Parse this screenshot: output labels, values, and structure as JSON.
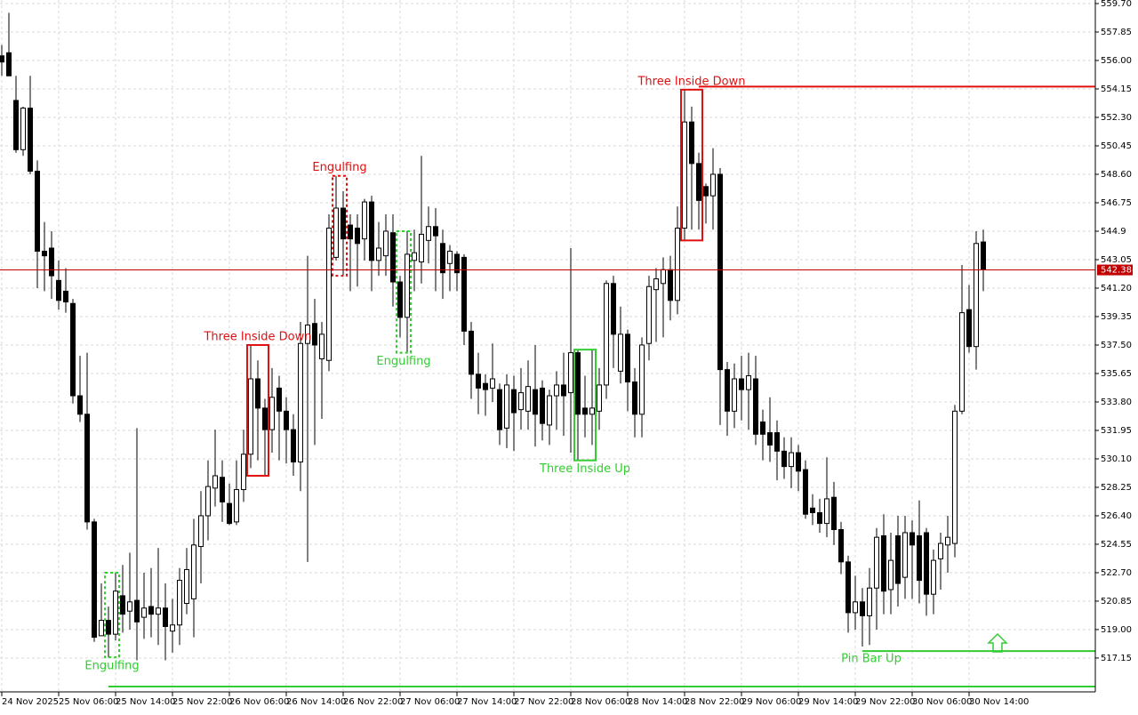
{
  "chart_data": {
    "type": "candlestick",
    "categories": [
      "24 Nov 2025",
      null,
      null,
      null,
      null,
      null,
      null,
      null,
      "25 Nov 06:00",
      null,
      null,
      null,
      null,
      null,
      null,
      null,
      "25 Nov 14:00",
      null,
      null,
      null,
      null,
      null,
      null,
      null,
      "25 Nov 22:00",
      null,
      null,
      null,
      null,
      null,
      null,
      null,
      "26 Nov 06:00",
      null,
      null,
      null,
      null,
      null,
      null,
      null,
      "26 Nov 14:00",
      null,
      null,
      null,
      null,
      null,
      null,
      null,
      "26 Nov 22:00",
      null,
      null,
      null,
      null,
      null,
      null,
      null,
      "27 Nov 06:00",
      null,
      null,
      null,
      null,
      null,
      null,
      null,
      "27 Nov 14:00",
      null,
      null,
      null,
      null,
      null,
      null,
      null,
      "27 Nov 22:00",
      null,
      null,
      null,
      null,
      null,
      null,
      null,
      "28 Nov 06:00",
      null,
      null,
      null,
      null,
      null,
      null,
      null,
      "28 Nov 14:00",
      null,
      null,
      null,
      null,
      null,
      null,
      null,
      "28 Nov 22:00",
      null,
      null,
      null,
      null,
      null,
      null,
      null,
      "29 Nov 06:00",
      null,
      null,
      null,
      null,
      null,
      null,
      null,
      "29 Nov 14:00",
      null,
      null,
      null,
      null,
      null,
      null,
      null,
      "29 Nov 22:00",
      null,
      null,
      null,
      null,
      null,
      null,
      null,
      "30 Nov 06:00",
      null,
      null,
      null,
      null,
      null,
      null,
      null,
      "30 Nov 14:00",
      null,
      null
    ],
    "open": [
      556.3,
      556.5,
      553.4,
      550.2,
      552.9,
      548.8,
      543.6,
      543.8,
      541.7,
      541.0,
      540.2,
      534.2,
      533.0,
      526.0,
      518.6,
      519.6,
      518.7,
      521.2,
      520.2,
      520.9,
      519.8,
      520.5,
      520.0,
      520.4,
      518.9,
      519.3,
      520.7,
      521.0,
      524.4,
      526.4,
      528.2,
      528.9,
      527.2,
      526.0,
      528.1,
      530.4,
      535.3,
      533.4,
      532.0,
      534.7,
      533.2,
      532.0,
      529.9,
      537.6,
      538.9,
      536.6,
      536.5,
      543.2,
      546.4,
      545.3,
      545.1,
      544.4,
      546.8,
      543.0,
      543.3,
      544.8,
      541.6,
      539.3,
      543.0,
      542.9,
      544.3,
      545.2,
      544.1,
      542.8,
      543.4,
      543.2,
      538.4,
      535.6,
      535.0,
      534.7,
      534.6,
      532.1,
      534.6,
      533.3,
      533.2,
      534.6,
      534.7,
      532.3,
      534.2,
      534.9,
      534.4,
      537.0,
      533.4,
      533.0,
      533.2,
      534.9,
      541.5,
      535.8,
      538.2,
      535.1,
      533.0,
      537.6,
      541.1,
      541.5,
      542.4,
      540.4,
      545.1,
      552.0,
      549.3,
      547.8,
      547.2,
      548.6,
      535.9,
      533.2,
      535.3,
      534.6,
      535.3,
      532.5,
      531.8,
      531.8,
      530.6,
      529.6,
      530.5,
      529.4,
      526.9,
      526.6,
      525.9,
      527.6,
      525.5,
      523.4,
      520.1,
      520.8,
      519.9,
      521.7,
      525.1,
      521.6,
      525.1,
      522.4,
      525.3,
      525.1,
      525.3,
      521.3,
      523.6,
      524.5,
      524.6,
      533.2,
      539.8,
      537.4,
      544.2
    ],
    "high": [
      557.0,
      559.1,
      555.0,
      553.0,
      555.0,
      549.5,
      545.5,
      544.9,
      543.0,
      542.5,
      540.5,
      536.8,
      537.0,
      526.2,
      522.0,
      520.5,
      522.7,
      523.2,
      524.0,
      532.1,
      522.7,
      523.0,
      524.3,
      522.0,
      521.0,
      523.0,
      524.3,
      526.2,
      528.0,
      530.0,
      532.0,
      530.0,
      528.5,
      530.0,
      532.0,
      537.5,
      536.5,
      534.0,
      536.0,
      535.5,
      534.1,
      533.0,
      539.0,
      543.3,
      540.5,
      539.0,
      546.0,
      548.5,
      547.5,
      546.0,
      546.0,
      547.0,
      547.2,
      545.5,
      546.0,
      546.0,
      542.0,
      544.9,
      545.0,
      549.8,
      546.5,
      546.4,
      545.0,
      544.0,
      543.6,
      543.4,
      539.0,
      537.0,
      535.6,
      537.6,
      535.0,
      535.6,
      535.5,
      536.0,
      536.5,
      537.5,
      535.2,
      534.6,
      535.8,
      537.0,
      543.8,
      537.2,
      535.5,
      537.2,
      536.0,
      541.7,
      542.0,
      540.0,
      538.5,
      536.0,
      538.0,
      542.0,
      542.5,
      543.2,
      543.3,
      546.5,
      554.1,
      553.0,
      550.0,
      548.0,
      550.3,
      549.0,
      536.4,
      536.3,
      536.8,
      537.0,
      536.8,
      533.3,
      534.1,
      532.6,
      531.5,
      531.5,
      531.0,
      530.0,
      527.8,
      527.5,
      530.2,
      528.6,
      526.0,
      523.8,
      522.5,
      521.7,
      523.0,
      525.6,
      526.5,
      525.3,
      526.4,
      526.4,
      526.1,
      527.4,
      525.6,
      524.2,
      525.3,
      526.4,
      533.6,
      542.7,
      541.4,
      544.9,
      545.0
    ],
    "low": [
      555.0,
      555.0,
      550.0,
      549.8,
      548.6,
      541.2,
      541.0,
      540.5,
      539.8,
      539.6,
      533.7,
      532.5,
      525.5,
      518.2,
      518.6,
      517.2,
      518.3,
      518.8,
      519.0,
      517.0,
      518.4,
      518.5,
      518.0,
      517.0,
      517.5,
      518.0,
      520.0,
      518.5,
      522.0,
      524.8,
      527.0,
      526.0,
      525.8,
      525.8,
      527.3,
      529.5,
      530.0,
      529.0,
      530.5,
      530.0,
      529.8,
      529.0,
      528.0,
      523.4,
      531.0,
      532.7,
      535.8,
      543.0,
      542.0,
      541.0,
      541.3,
      543.0,
      541.0,
      542.0,
      542.0,
      540.0,
      538.0,
      537.0,
      541.0,
      541.5,
      542.8,
      541.0,
      540.5,
      541.0,
      541.0,
      537.5,
      534.0,
      533.0,
      532.9,
      533.8,
      531.0,
      530.8,
      530.6,
      532.0,
      532.0,
      530.9,
      531.3,
      531.0,
      532.0,
      531.6,
      530.5,
      530.0,
      531.5,
      531.0,
      532.0,
      534.0,
      536.0,
      535.0,
      533.2,
      531.5,
      531.5,
      536.5,
      537.7,
      538.0,
      539.1,
      539.5,
      544.3,
      545.0,
      545.0,
      545.4,
      545.0,
      532.3,
      531.6,
      532.1,
      532.6,
      532.0,
      531.0,
      530.0,
      529.9,
      528.7,
      528.8,
      528.2,
      528.0,
      526.2,
      525.8,
      525.3,
      525.0,
      524.5,
      522.6,
      518.8,
      519.0,
      517.9,
      518.0,
      519.0,
      520.0,
      520.0,
      520.5,
      521.0,
      521.0,
      520.7,
      519.9,
      520.0,
      521.6,
      522.7,
      523.7,
      533.0,
      537.0,
      535.9,
      541.0
    ],
    "close": [
      555.9,
      555.0,
      550.2,
      552.9,
      548.8,
      543.6,
      543.3,
      542.0,
      540.4,
      540.3,
      534.2,
      533.0,
      526.0,
      518.5,
      519.6,
      518.7,
      521.5,
      520.0,
      520.8,
      519.5,
      520.4,
      520.0,
      520.4,
      519.2,
      519.3,
      522.2,
      522.9,
      524.5,
      526.4,
      528.3,
      529.0,
      527.3,
      525.9,
      528.1,
      530.4,
      535.3,
      533.4,
      532.0,
      534.1,
      533.2,
      532.0,
      529.9,
      537.6,
      538.8,
      537.5,
      538.2,
      545.1,
      546.4,
      544.4,
      544.4,
      544.1,
      546.8,
      543.0,
      543.8,
      544.9,
      541.6,
      539.3,
      543.4,
      543.5,
      544.7,
      545.2,
      544.6,
      542.2,
      543.6,
      542.2,
      538.4,
      535.6,
      534.7,
      534.6,
      535.3,
      532.0,
      534.9,
      533.1,
      534.4,
      534.8,
      533.0,
      532.4,
      534.2,
      534.9,
      534.2,
      537.0,
      533.0,
      533.0,
      533.4,
      534.9,
      541.5,
      538.2,
      538.2,
      535.1,
      533.0,
      537.5,
      541.3,
      541.8,
      542.4,
      540.4,
      545.1,
      552.0,
      549.3,
      546.9,
      547.2,
      548.6,
      535.9,
      533.2,
      535.3,
      534.6,
      535.5,
      531.7,
      531.7,
      531.0,
      530.6,
      529.6,
      530.5,
      529.3,
      526.5,
      526.6,
      525.9,
      527.5,
      525.5,
      523.4,
      520.1,
      520.8,
      519.9,
      521.7,
      525.0,
      521.5,
      523.5,
      522.0,
      525.3,
      524.5,
      522.2,
      521.3,
      523.5,
      524.6,
      525.0,
      533.2,
      539.6,
      537.4,
      544.1,
      542.4
    ],
    "ylim": [
      514.95,
      559.93
    ],
    "yticks": [
      {
        "value": 559.7,
        "label": "559.70"
      },
      557.85,
      {
        "value": 556.0,
        "label": "556.00"
      },
      554.15,
      {
        "value": 552.3,
        "label": "552.30"
      },
      550.45,
      {
        "value": 548.6,
        "label": "548.60"
      },
      546.75,
      544.9,
      543.05,
      {
        "value": 541.2,
        "label": "541.20"
      },
      539.35,
      {
        "value": 537.5,
        "label": "537.50"
      },
      535.65,
      {
        "value": 533.8,
        "label": "533.80"
      },
      531.95,
      {
        "value": 530.1,
        "label": "530.10"
      },
      528.25,
      {
        "value": 526.4,
        "label": "526.40"
      },
      524.55,
      {
        "value": 522.7,
        "label": "522.70"
      },
      520.85,
      {
        "value": 519.0,
        "label": "519.00"
      },
      517.15
    ],
    "grid": true,
    "current_price": 542.38,
    "current_price_color": "#c00000",
    "bull_color": "#ffffff",
    "bear_color": "#000000",
    "patterns": [
      {
        "label": "Engulfing",
        "color": "#33cc33",
        "start": 15,
        "end": 16,
        "side": "below",
        "style": "dashed"
      },
      {
        "label": "Three Inside Down",
        "color": "#e01010",
        "start": 35,
        "end": 37,
        "side": "above",
        "style": "solid"
      },
      {
        "label": "Engulfing",
        "color": "#e01010",
        "start": 47,
        "end": 48,
        "side": "above",
        "style": "dashed"
      },
      {
        "label": "Engulfing",
        "color": "#33cc33",
        "start": 56,
        "end": 57,
        "side": "below",
        "style": "dashed"
      },
      {
        "label": "Three Inside Up",
        "color": "#33cc33",
        "start": 81,
        "end": 83,
        "side": "below",
        "style": "solid"
      },
      {
        "label": "Three Inside Down",
        "color": "#e01010",
        "start": 96,
        "end": 98,
        "side": "above",
        "style": "solid"
      }
    ],
    "levels": [
      {
        "value": 554.3,
        "color": "#e01010",
        "start": 98
      },
      {
        "value": 515.3,
        "color": "#33cc33",
        "start": 15
      },
      {
        "value": 517.6,
        "color": "#33cc33",
        "start": 121,
        "label": "Pin Bar Up"
      }
    ]
  }
}
